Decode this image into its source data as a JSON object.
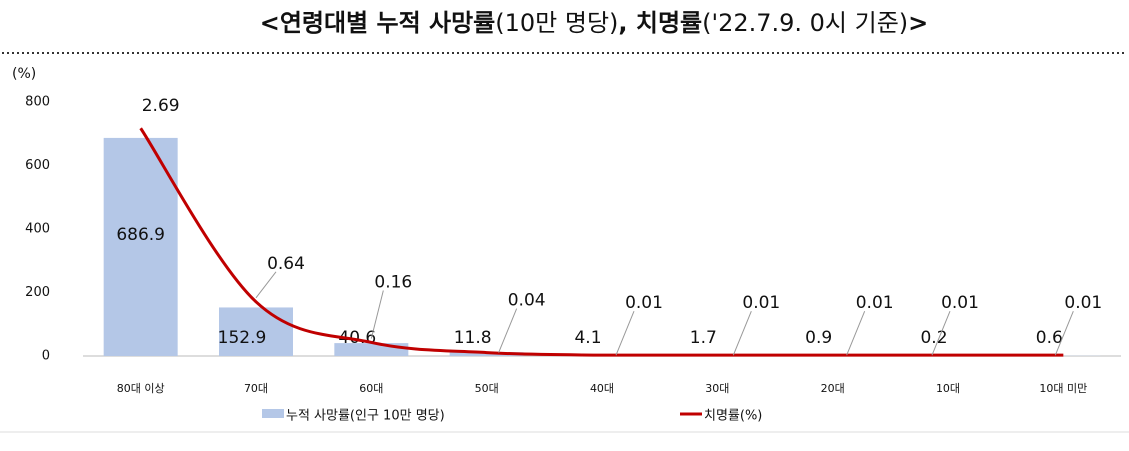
{
  "chart_data": {
    "type": "bar_line",
    "title": [
      "<연령대별 누적 사망률",
      "(10만 명당)",
      ", 치명률",
      "('22.7.9. 0시 기준)",
      ">"
    ],
    "y_axis_label": "(%)",
    "categories": [
      "80대 이상",
      "70대",
      "60대",
      "50대",
      "40대",
      "30대",
      "20대",
      "10대",
      "10대 미만"
    ],
    "series": [
      {
        "name": "누적 사망률(인구 10만 명당)",
        "type": "bar",
        "color": "#b4c7e7",
        "values": [
          686.9,
          152.9,
          40.6,
          11.8,
          4.1,
          1.7,
          0.9,
          0.2,
          0.6
        ]
      },
      {
        "name": "치명률(%)",
        "type": "line",
        "axis": "y2",
        "color": "#c00000",
        "values": [
          2.69,
          0.64,
          0.16,
          0.04,
          0.01,
          0.01,
          0.01,
          0.01,
          0.01
        ]
      }
    ],
    "ylim": [
      0,
      800
    ],
    "yticks": [
      0,
      200,
      400,
      600,
      800
    ],
    "y2lim": [
      0,
      3
    ],
    "grid": false,
    "legend": "bottom"
  }
}
